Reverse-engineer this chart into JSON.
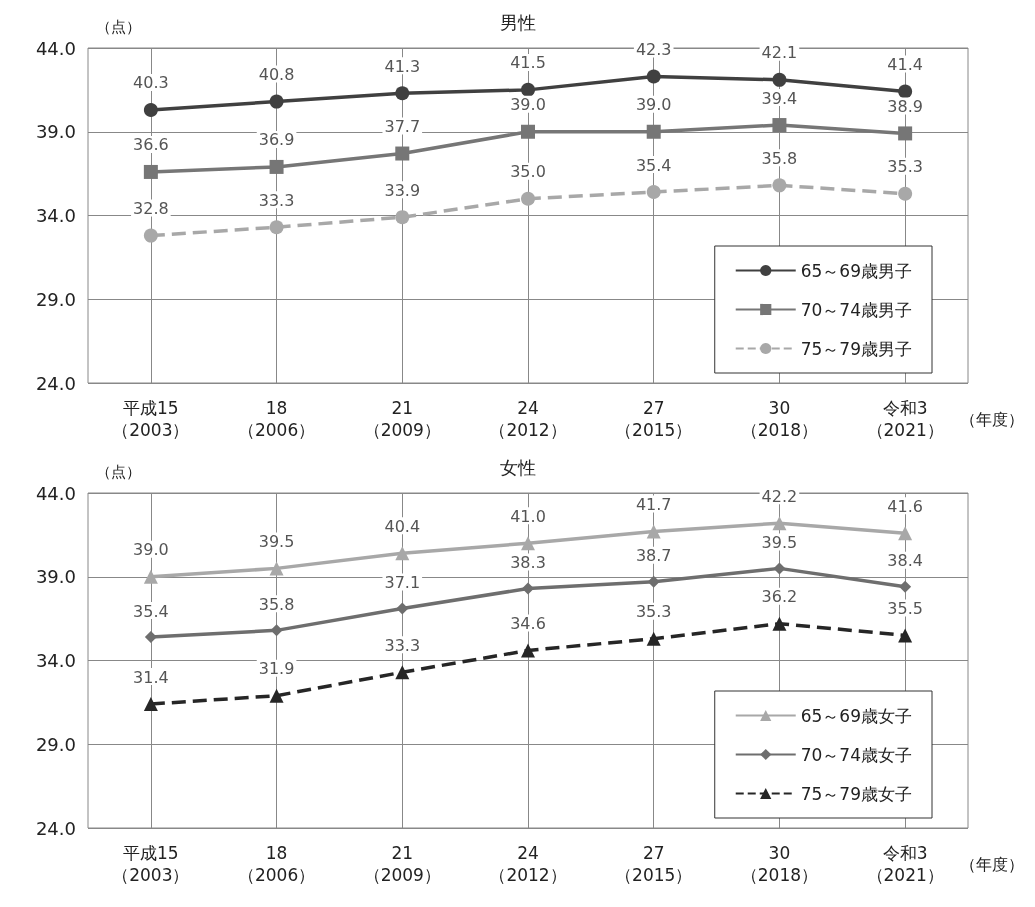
{
  "chart_data": [
    {
      "type": "line",
      "title": "男性",
      "ylabel": "（点）",
      "xlabel": "（年度）",
      "categories": [
        "平成15\n（2003）",
        "18\n（2006）",
        "21\n（2009）",
        "24\n（2012）",
        "27\n（2015）",
        "30\n（2018）",
        "令和3\n（2021）"
      ],
      "series": [
        {
          "name": "65～69歳男子",
          "color": "#404040",
          "marker": "circle",
          "line_style": "solid",
          "values": [
            40.3,
            40.8,
            41.3,
            41.5,
            42.3,
            42.1,
            41.4
          ],
          "value_labels": [
            "40.3",
            "40.8",
            "41.3",
            "41.5",
            "42.3",
            "42.1",
            "41.4"
          ]
        },
        {
          "name": "70～74歳男子",
          "color": "#767676",
          "marker": "square",
          "line_style": "solid",
          "values": [
            36.6,
            36.9,
            37.7,
            39.0,
            39.0,
            39.4,
            38.9
          ],
          "value_labels": [
            "36.6",
            "36.9",
            "37.7",
            "39.0",
            "39.0",
            "39.4",
            "38.9"
          ]
        },
        {
          "name": "75～79歳男子",
          "color": "#a8a8a8",
          "marker": "circle",
          "line_style": "dashed",
          "values": [
            32.8,
            33.3,
            33.9,
            35.0,
            35.4,
            35.8,
            35.3
          ],
          "value_labels": [
            "32.8",
            "33.3",
            "33.9",
            "35.0",
            "35.4",
            "35.8",
            "35.3"
          ]
        }
      ],
      "ylim": [
        24,
        44
      ],
      "yticks": [
        {
          "value": 24,
          "label": "24.0"
        },
        {
          "value": 29,
          "label": "29.0"
        },
        {
          "value": 34,
          "label": "34.0"
        },
        {
          "value": 39,
          "label": "39.0"
        },
        {
          "value": 44,
          "label": "44.0"
        }
      ],
      "grid": true,
      "legend": "bottom right"
    },
    {
      "type": "line",
      "title": "女性",
      "ylabel": "（点）",
      "xlabel": "（年度）",
      "categories": [
        "平成15\n（2003）",
        "18\n（2006）",
        "21\n（2009）",
        "24\n（2012）",
        "27\n（2015）",
        "30\n（2018）",
        "令和3\n（2021）"
      ],
      "series": [
        {
          "name": "65～69歳女子",
          "color": "#a8a8a8",
          "marker": "triangle",
          "line_style": "solid",
          "values": [
            39.0,
            39.5,
            40.4,
            41.0,
            41.7,
            42.2,
            41.6
          ],
          "value_labels": [
            "39.0",
            "39.5",
            "40.4",
            "41.0",
            "41.7",
            "42.2",
            "41.6"
          ]
        },
        {
          "name": "70～74歳女子",
          "color": "#6e6e6e",
          "marker": "diamond",
          "line_style": "solid",
          "values": [
            35.4,
            35.8,
            37.1,
            38.3,
            38.7,
            39.5,
            38.4
          ],
          "value_labels": [
            "35.4",
            "35.8",
            "37.1",
            "38.3",
            "38.7",
            "39.5",
            "38.4"
          ]
        },
        {
          "name": "75～79歳女子",
          "color": "#262626",
          "marker": "triangle",
          "line_style": "dashed",
          "values": [
            31.4,
            31.9,
            33.3,
            34.6,
            35.3,
            36.2,
            35.5
          ],
          "value_labels": [
            "31.4",
            "31.9",
            "33.3",
            "34.6",
            "35.3",
            "36.2",
            "35.5"
          ]
        }
      ],
      "ylim": [
        24,
        44
      ],
      "yticks": [
        {
          "value": 24,
          "label": "24.0"
        },
        {
          "value": 29,
          "label": "29.0"
        },
        {
          "value": 34,
          "label": "34.0"
        },
        {
          "value": 39,
          "label": "39.0"
        },
        {
          "value": 44,
          "label": "44.0"
        }
      ],
      "grid": true,
      "legend": "bottom right"
    }
  ]
}
